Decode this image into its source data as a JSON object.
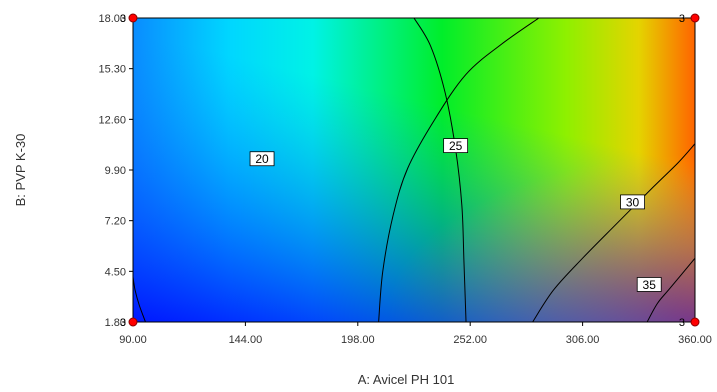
{
  "chart_data": {
    "type": "contour",
    "title": "",
    "xlabel": "A: Avicel PH 101",
    "ylabel": "B: PVP K-30",
    "xlim": [
      90,
      360
    ],
    "ylim": [
      1.8,
      18.0
    ],
    "x_ticks": [
      "90.00",
      "144.00",
      "198.00",
      "252.00",
      "306.00",
      "360.00"
    ],
    "y_ticks": [
      "1.80",
      "4.50",
      "7.20",
      "9.90",
      "12.60",
      "15.30",
      "18.00"
    ],
    "contours": [
      {
        "level": "20",
        "label_at": [
          152,
          10.5
        ],
        "points": [
          [
            225,
            18.0
          ],
          [
            233,
            16.5
          ],
          [
            240,
            14.0
          ],
          [
            245,
            11.0
          ],
          [
            248,
            8.0
          ],
          [
            249,
            5.0
          ],
          [
            250,
            1.8
          ]
        ]
      },
      {
        "level": "25",
        "label_at": [
          245,
          11.2
        ],
        "points": [
          [
            208,
            1.8
          ],
          [
            210,
            4.5
          ],
          [
            215,
            7.5
          ],
          [
            222,
            10.0
          ],
          [
            235,
            12.6
          ],
          [
            250,
            15.0
          ],
          [
            267,
            16.6
          ],
          [
            285,
            18.0
          ]
        ]
      },
      {
        "level": "30",
        "label_at": [
          330,
          8.2
        ],
        "points": [
          [
            282,
            1.8
          ],
          [
            292,
            3.5
          ],
          [
            306,
            5.2
          ],
          [
            322,
            7.0
          ],
          [
            340,
            9.0
          ],
          [
            352,
            10.3
          ],
          [
            360,
            11.3
          ]
        ]
      },
      {
        "level": "35",
        "label_at": [
          338,
          3.8
        ],
        "points": [
          [
            337,
            1.8
          ],
          [
            342,
            2.8
          ],
          [
            348,
            3.6
          ],
          [
            360,
            5.2
          ]
        ]
      },
      {
        "level": "",
        "label_at": null,
        "points": [
          [
            90,
            4.2
          ],
          [
            91,
            3.5
          ],
          [
            93,
            2.7
          ],
          [
            96,
            1.8
          ]
        ]
      }
    ],
    "design_points": [
      {
        "x": 90,
        "y": 18.0,
        "label": "3"
      },
      {
        "x": 360,
        "y": 18.0,
        "label": "3"
      },
      {
        "x": 90,
        "y": 1.8,
        "label": "3"
      },
      {
        "x": 360,
        "y": 1.8,
        "label": "3"
      }
    ],
    "colormap": [
      "#0011ff",
      "#00b4ff",
      "#00eaff",
      "#00ff55",
      "#a8ff00",
      "#ffd000",
      "#ff2a00"
    ]
  }
}
